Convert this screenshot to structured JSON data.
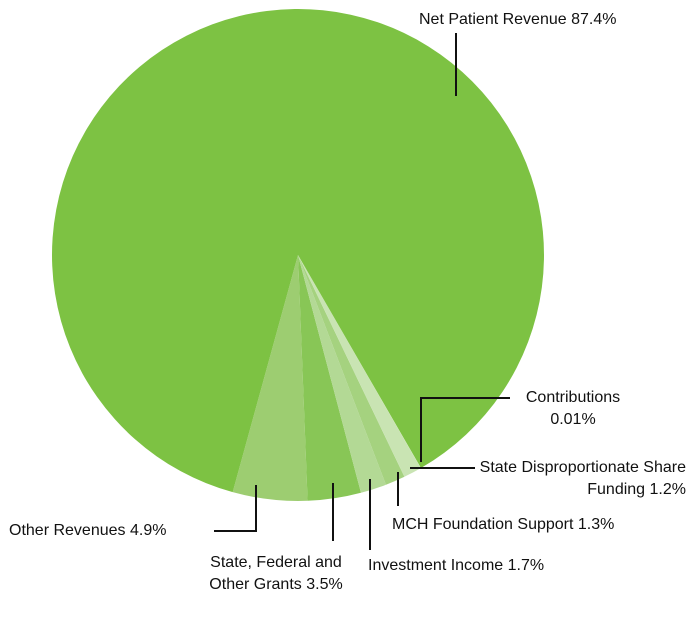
{
  "chart_data": {
    "type": "pie",
    "categories": [
      "Net Patient Revenue",
      "Contributions",
      "State Disproportionate Share Funding",
      "MCH Foundation Support",
      "Investment Income",
      "State, Federal and Other Grants",
      "Other Revenues"
    ],
    "values": [
      87.4,
      0.01,
      1.2,
      1.3,
      1.7,
      3.5,
      4.9
    ],
    "value_labels": [
      "87.4%",
      "0.01%",
      "1.2%",
      "1.3%",
      "1.7%",
      "3.5%",
      "4.9%"
    ],
    "colors": [
      "#7dc243",
      "#eef6e6",
      "#c9e4b3",
      "#a5d27f",
      "#b3d995",
      "#88c656",
      "#9dcd71"
    ]
  }
}
